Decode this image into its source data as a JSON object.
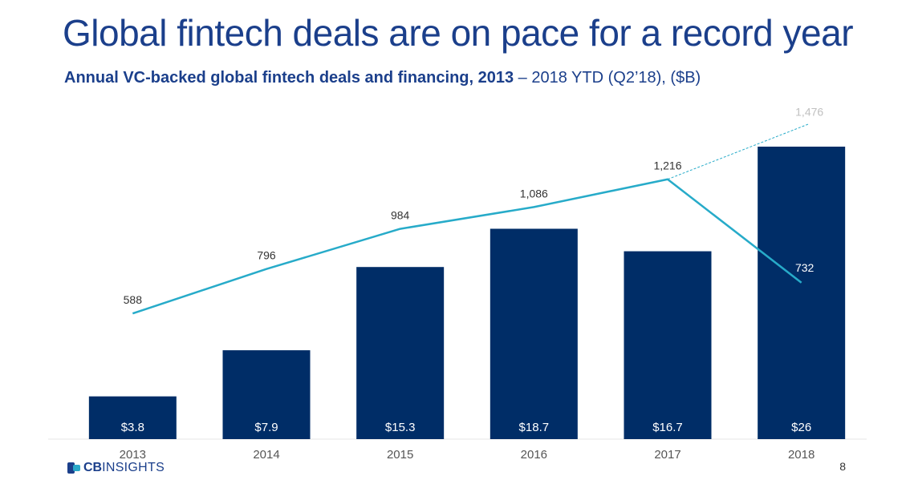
{
  "header": {
    "title": "Global fintech deals are on pace for a record year",
    "subtitle_bold": "Annual VC-backed global fintech deals and financing, 2013",
    "subtitle_rest": " – 2018 YTD (Q2’18), ($B)"
  },
  "footer": {
    "logo_cb": "CB",
    "logo_insights": "INSIGHTS",
    "page_number": "8"
  },
  "colors": {
    "bar": "#002d67",
    "line": "#27abc9",
    "projection": "#27abc9"
  },
  "chart_data": {
    "type": "bar",
    "categories": [
      "2013",
      "2014",
      "2015",
      "2016",
      "2017",
      "2018"
    ],
    "series": [
      {
        "type": "bar",
        "values": [
          3.8,
          7.9,
          15.3,
          18.7,
          16.7,
          26
        ],
        "labels": [
          "$3.8",
          "$7.9",
          "$15.3",
          "$18.7",
          "$16.7",
          "$26"
        ]
      },
      {
        "type": "line",
        "values": [
          588,
          796,
          984,
          1086,
          1216,
          732
        ],
        "labels": [
          "588",
          "796",
          "984",
          "1,086",
          "1,216",
          "732"
        ]
      }
    ],
    "projection": {
      "from": "2017",
      "from_value": 1216,
      "to": "2018",
      "value": 1476,
      "label": "1,476",
      "style": "dashed"
    },
    "bar_ylim": [
      0,
      26
    ],
    "line_ylim": [
      0,
      1530
    ],
    "title": "Global fintech deals are on pace for a record year",
    "grid": false
  }
}
